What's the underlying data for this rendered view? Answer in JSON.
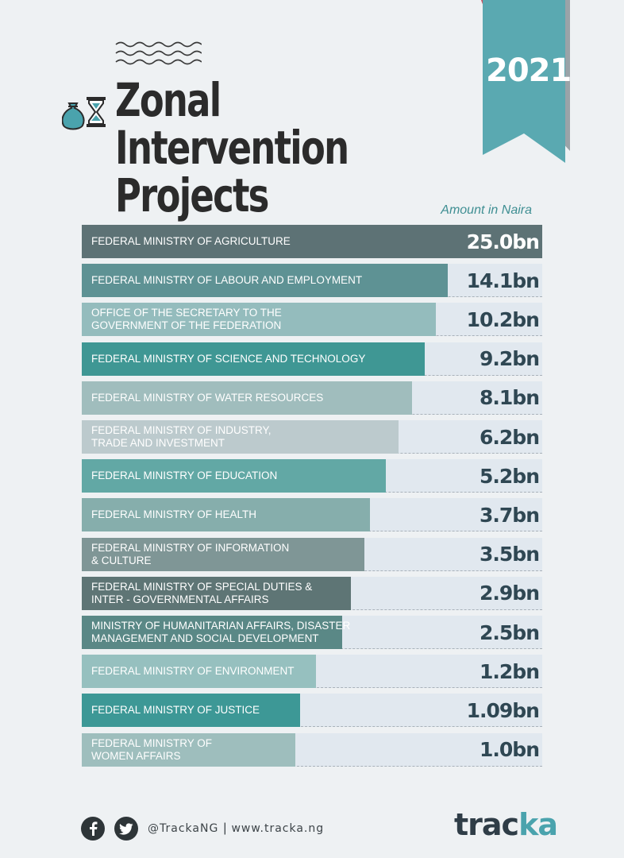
{
  "header": {
    "year": "2021",
    "title_line1": "Zonal Intervention",
    "title_line2": "Projects",
    "unit_note": "Amount in Naira"
  },
  "colors": {
    "ribbon": "#5aa9b1",
    "ribbon_shadow": "#9aa3a8",
    "ribbon_top": "#c9505f",
    "icon_teal": "#4aa3ad",
    "value_text": "#2f4753",
    "track": "#e1e8ef"
  },
  "chart_data": {
    "type": "bar",
    "orientation": "horizontal",
    "unit": "bn Naira",
    "categories": [
      "FEDERAL MINISTRY OF AGRICULTURE",
      "FEDERAL MINISTRY OF LABOUR AND EMPLOYMENT",
      "OFFICE OF THE SECRETARY TO THE\nGOVERNMENT OF THE FEDERATION",
      "FEDERAL MINISTRY OF SCIENCE AND TECHNOLOGY",
      "FEDERAL MINISTRY OF WATER RESOURCES",
      "FEDERAL MINISTRY OF INDUSTRY,\nTRADE AND INVESTMENT",
      "FEDERAL MINISTRY OF EDUCATION",
      "FEDERAL MINISTRY OF HEALTH",
      "FEDERAL MINISTRY OF INFORMATION\n& CULTURE",
      "FEDERAL MINISTRY OF SPECIAL DUTIES &\nINTER - GOVERNMENTAL AFFAIRS",
      "MINISTRY OF HUMANITARIAN AFFAIRS, DISASTER\nMANAGEMENT AND SOCIAL DEVELOPMENT",
      "FEDERAL MINISTRY OF ENVIRONMENT",
      "FEDERAL MINISTRY OF JUSTICE",
      "FEDERAL MINISTRY OF\nWOMEN AFFAIRS"
    ],
    "values": [
      25.0,
      14.1,
      10.2,
      9.2,
      8.1,
      6.2,
      5.2,
      3.7,
      3.5,
      2.9,
      2.5,
      1.2,
      1.09,
      1.0
    ],
    "value_labels": [
      "25.0bn",
      "14.1bn",
      "10.2bn",
      "9.2bn",
      "8.1bn",
      "6.2bn",
      "5.2bn",
      "3.7bn",
      "3.5bn",
      "2.9bn",
      "2.5bn",
      "1.2bn",
      "1.09bn",
      "1.0bn"
    ],
    "bar_fill_fraction": [
      1.0,
      0.795,
      0.769,
      0.745,
      0.717,
      0.688,
      0.66,
      0.626,
      0.614,
      0.585,
      0.565,
      0.509,
      0.474,
      0.464
    ],
    "bar_colors": [
      "#5d7275",
      "#5e9294",
      "#94bcbd",
      "#3f9794",
      "#a0bdbd",
      "#bccacd",
      "#62a8a5",
      "#86aeac",
      "#7f9696",
      "#5e7575",
      "#5a8886",
      "#96c0bf",
      "#3d9896",
      "#9ebebd"
    ],
    "title": "Zonal Intervention Projects",
    "xlabel": "",
    "ylabel": "Amount in Naira"
  },
  "footer": {
    "facebook_icon": "facebook-icon",
    "twitter_icon": "twitter-icon",
    "handle": "@TrackaNG",
    "separator": "|",
    "website": "www.tracka.ng",
    "logo_part1": "trac",
    "logo_part2": "ka"
  }
}
